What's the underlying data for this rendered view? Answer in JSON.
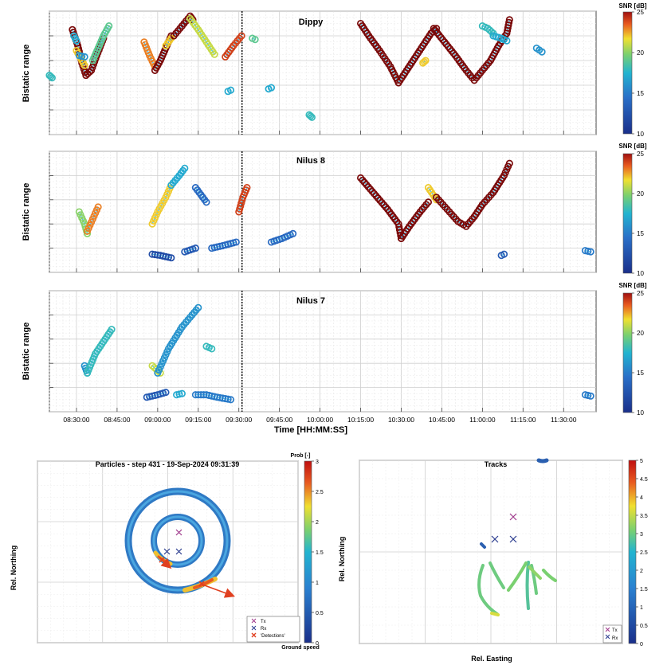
{
  "shared": {
    "xlabel": "Time [HH:MM:SS]",
    "ylabel": "Bistatic range",
    "x_ticks": [
      "08:30:00",
      "08:45:00",
      "09:00:00",
      "09:15:00",
      "09:30:00",
      "09:45:00",
      "10:00:00",
      "10:15:00",
      "10:30:00",
      "10:45:00",
      "11:00:00",
      "11:15:00",
      "11:30:00"
    ],
    "xlim": [
      "08:20:00",
      "11:42:00"
    ],
    "marker_time": "09:31:10",
    "colorbar": {
      "label": "SNR [dB]",
      "min": 10,
      "max": 25,
      "ticks": [
        10,
        15,
        20,
        25
      ]
    },
    "colors": {
      "low": "#1a2f8a",
      "mid": "#22b4d0",
      "high": "#f0e030",
      "top": "#7a0a0a"
    }
  },
  "chart_data": [
    {
      "type": "scatter",
      "title": "Dippy",
      "ylim": [
        0,
        100
      ],
      "series": [
        {
          "snr": 25,
          "points": [
            [
              "08:28:30",
              85
            ],
            [
              "08:30:30",
              72
            ],
            [
              "08:32:00",
              58
            ],
            [
              "08:33:30",
              48
            ],
            [
              "08:35:30",
              52
            ],
            [
              "08:37:30",
              64
            ],
            [
              "08:40:00",
              78
            ]
          ]
        },
        {
          "snr": 19,
          "points": [
            [
              "08:36:00",
              60
            ],
            [
              "08:38:00",
              70
            ],
            [
              "08:40:00",
              80
            ],
            [
              "08:42:00",
              88
            ]
          ]
        },
        {
          "snr": 22,
          "points": [
            [
              "08:30:00",
              68
            ],
            [
              "08:31:30",
              62
            ],
            [
              "08:33:00",
              56
            ]
          ]
        },
        {
          "snr": 18,
          "points": [
            [
              "08:20:00",
              48
            ],
            [
              "08:21:00",
              46
            ]
          ]
        },
        {
          "snr": 17,
          "points": [
            [
              "08:29:00",
              80
            ],
            [
              "08:30:00",
              76
            ]
          ]
        },
        {
          "snr": 16,
          "points": [
            [
              "08:31:00",
              64
            ],
            [
              "08:33:00",
              63
            ]
          ]
        },
        {
          "snr": 23,
          "points": [
            [
              "08:55:00",
              75
            ],
            [
              "08:57:00",
              64
            ],
            [
              "08:59:00",
              55
            ]
          ]
        },
        {
          "snr": 25,
          "points": [
            [
              "08:59:00",
              52
            ],
            [
              "09:01:00",
              60
            ],
            [
              "09:03:00",
              70
            ],
            [
              "09:05:00",
              80
            ]
          ]
        },
        {
          "snr": 22,
          "points": [
            [
              "09:03:00",
              72
            ],
            [
              "09:05:00",
              78
            ]
          ]
        },
        {
          "snr": 25,
          "points": [
            [
              "09:06:00",
              80
            ],
            [
              "09:09:00",
              88
            ],
            [
              "09:12:00",
              96
            ],
            [
              "09:13:00",
              93
            ]
          ]
        },
        {
          "snr": 21,
          "points": [
            [
              "09:12:00",
              94
            ],
            [
              "09:15:00",
              85
            ],
            [
              "09:18:00",
              75
            ],
            [
              "09:21:00",
              65
            ]
          ]
        },
        {
          "snr": 24,
          "points": [
            [
              "09:25:00",
              63
            ],
            [
              "09:28:00",
              72
            ],
            [
              "09:31:00",
              80
            ]
          ]
        },
        {
          "snr": 19,
          "points": [
            [
              "09:35:00",
              78
            ],
            [
              "09:36:00",
              77
            ]
          ]
        },
        {
          "snr": 17,
          "points": [
            [
              "09:26:00",
              35
            ],
            [
              "09:27:00",
              36
            ]
          ]
        },
        {
          "snr": 17,
          "points": [
            [
              "09:41:00",
              37
            ],
            [
              "09:42:00",
              38
            ]
          ]
        },
        {
          "snr": 18,
          "points": [
            [
              "09:56:00",
              16
            ],
            [
              "09:57:00",
              14
            ]
          ]
        },
        {
          "snr": 25,
          "points": [
            [
              "10:15:00",
              90
            ],
            [
              "10:18:00",
              80
            ],
            [
              "10:22:00",
              68
            ],
            [
              "10:26:00",
              55
            ],
            [
              "10:29:00",
              42
            ]
          ]
        },
        {
          "snr": 25,
          "points": [
            [
              "10:29:00",
              42
            ],
            [
              "10:32:00",
              52
            ],
            [
              "10:35:00",
              62
            ],
            [
              "10:38:00",
              72
            ],
            [
              "10:41:00",
              82
            ],
            [
              "10:43:00",
              86
            ]
          ]
        },
        {
          "snr": 25,
          "points": [
            [
              "10:42:00",
              86
            ],
            [
              "10:46:00",
              75
            ],
            [
              "10:50:00",
              64
            ],
            [
              "10:54:00",
              52
            ],
            [
              "10:57:00",
              44
            ],
            [
              "11:00:00",
              52
            ],
            [
              "11:03:00",
              60
            ],
            [
              "11:06:00",
              72
            ],
            [
              "11:09:00",
              82
            ],
            [
              "11:10:00",
              93
            ]
          ]
        },
        {
          "snr": 22,
          "points": [
            [
              "10:38:00",
              58
            ],
            [
              "10:39:00",
              60
            ]
          ]
        },
        {
          "snr": 18,
          "points": [
            [
              "11:00:00",
              88
            ],
            [
              "11:02:00",
              86
            ],
            [
              "11:04:00",
              82
            ]
          ]
        },
        {
          "snr": 17,
          "points": [
            [
              "11:04:00",
              80
            ],
            [
              "11:07:00",
              78
            ],
            [
              "11:09:00",
              76
            ]
          ]
        },
        {
          "snr": 16,
          "points": [
            [
              "11:20:00",
              70
            ],
            [
              "11:22:00",
              67
            ]
          ]
        }
      ]
    },
    {
      "type": "scatter",
      "title": "Nilus 8",
      "ylim": [
        0,
        100
      ],
      "series": [
        {
          "snr": 20,
          "points": [
            [
              "08:31:00",
              50
            ],
            [
              "08:33:00",
              40
            ],
            [
              "08:34:00",
              32
            ]
          ]
        },
        {
          "snr": 23,
          "points": [
            [
              "08:34:00",
              34
            ],
            [
              "08:36:00",
              44
            ],
            [
              "08:38:00",
              54
            ]
          ]
        },
        {
          "snr": 22,
          "points": [
            [
              "08:58:00",
              40
            ],
            [
              "09:00:00",
              50
            ],
            [
              "09:03:00",
              62
            ],
            [
              "09:05:00",
              72
            ]
          ]
        },
        {
          "snr": 17,
          "points": [
            [
              "09:05:00",
              72
            ],
            [
              "09:08:00",
              80
            ],
            [
              "09:10:00",
              86
            ]
          ]
        },
        {
          "snr": 12,
          "points": [
            [
              "08:58:00",
              15
            ],
            [
              "09:01:00",
              14
            ],
            [
              "09:05:00",
              12
            ]
          ]
        },
        {
          "snr": 13,
          "points": [
            [
              "09:10:00",
              17
            ],
            [
              "09:14:00",
              20
            ]
          ]
        },
        {
          "snr": 14,
          "points": [
            [
              "09:14:00",
              70
            ],
            [
              "09:16:00",
              64
            ],
            [
              "09:18:00",
              58
            ]
          ]
        },
        {
          "snr": 14,
          "points": [
            [
              "09:20:00",
              20
            ],
            [
              "09:24:00",
              22
            ],
            [
              "09:29:00",
              25
            ]
          ]
        },
        {
          "snr": 24,
          "points": [
            [
              "09:30:00",
              50
            ],
            [
              "09:31:30",
              62
            ],
            [
              "09:33:00",
              70
            ]
          ]
        },
        {
          "snr": 14,
          "points": [
            [
              "09:42:00",
              25
            ],
            [
              "09:46:00",
              28
            ],
            [
              "09:50:00",
              32
            ]
          ]
        },
        {
          "snr": 25,
          "points": [
            [
              "10:15:00",
              78
            ],
            [
              "10:20:00",
              65
            ],
            [
              "10:25:00",
              52
            ],
            [
              "10:29:00",
              40
            ],
            [
              "10:30:00",
              28
            ]
          ]
        },
        {
          "snr": 25,
          "points": [
            [
              "10:30:00",
              28
            ],
            [
              "10:33:00",
              38
            ],
            [
              "10:37:00",
              50
            ],
            [
              "10:40:00",
              58
            ]
          ]
        },
        {
          "snr": 22,
          "points": [
            [
              "10:40:00",
              70
            ],
            [
              "10:43:00",
              60
            ]
          ]
        },
        {
          "snr": 25,
          "points": [
            [
              "10:43:00",
              62
            ],
            [
              "10:47:00",
              52
            ],
            [
              "10:51:00",
              42
            ],
            [
              "10:54:00",
              38
            ],
            [
              "10:57:00",
              46
            ],
            [
              "11:00:00",
              56
            ],
            [
              "11:04:00",
              66
            ],
            [
              "11:08:00",
              80
            ],
            [
              "11:10:00",
              90
            ]
          ]
        },
        {
          "snr": 13,
          "points": [
            [
              "11:07:00",
              14
            ],
            [
              "11:08:00",
              15
            ]
          ]
        },
        {
          "snr": 15,
          "points": [
            [
              "11:38:00",
              18
            ],
            [
              "11:40:00",
              17
            ]
          ]
        }
      ]
    },
    {
      "type": "scatter",
      "title": "Nilus 7",
      "ylim": [
        0,
        100
      ],
      "series": [
        {
          "snr": 16,
          "points": [
            [
              "08:33:00",
              38
            ],
            [
              "08:34:00",
              32
            ]
          ]
        },
        {
          "snr": 18,
          "points": [
            [
              "08:34:00",
              32
            ],
            [
              "08:37:00",
              48
            ],
            [
              "08:40:00",
              58
            ],
            [
              "08:43:00",
              68
            ]
          ]
        },
        {
          "snr": 13,
          "points": [
            [
              "08:56:00",
              12
            ],
            [
              "09:00:00",
              14
            ],
            [
              "09:03:00",
              16
            ]
          ]
        },
        {
          "snr": 21,
          "points": [
            [
              "08:58:00",
              38
            ],
            [
              "09:01:00",
              32
            ]
          ]
        },
        {
          "snr": 16,
          "points": [
            [
              "09:00:00",
              32
            ],
            [
              "09:04:00",
              52
            ],
            [
              "09:09:00",
              70
            ],
            [
              "09:15:00",
              86
            ]
          ]
        },
        {
          "snr": 17,
          "points": [
            [
              "09:07:00",
              14
            ],
            [
              "09:09:00",
              15
            ]
          ]
        },
        {
          "snr": 15,
          "points": [
            [
              "09:14:00",
              14
            ],
            [
              "09:18:00",
              14
            ],
            [
              "09:22:00",
              12
            ],
            [
              "09:27:00",
              10
            ]
          ]
        },
        {
          "snr": 18,
          "points": [
            [
              "09:18:00",
              54
            ],
            [
              "09:20:00",
              52
            ]
          ]
        },
        {
          "snr": 15,
          "points": [
            [
              "11:38:00",
              14
            ],
            [
              "11:40:00",
              13
            ]
          ]
        }
      ]
    },
    {
      "type": "heatmap",
      "title": "Particles - step 431 - 19-Sep-2024 09:31:39",
      "ylabel": "Rel. Northing",
      "xlabel": "",
      "colorbar": {
        "label": "Prob [-]",
        "min": 0,
        "max": 3,
        "ticks": [
          0,
          0.5,
          1,
          1.5,
          2,
          2.5,
          3
        ]
      },
      "legend": [
        "Tx",
        "Rx",
        "'Detections'"
      ],
      "legend_extra": "Ground speed",
      "legend_position": "bottom-right"
    },
    {
      "type": "scatter",
      "title": "Tracks",
      "xlabel": "Rel. Easting",
      "ylabel": "Rel. Northing",
      "colorbar": {
        "min": 0,
        "max": 5,
        "ticks": [
          0,
          0.5,
          1,
          1.5,
          2,
          2.5,
          3,
          3.5,
          4,
          4.5,
          5
        ]
      },
      "legend": [
        "Tx",
        "Rx"
      ],
      "legend_position": "bottom-right"
    }
  ]
}
